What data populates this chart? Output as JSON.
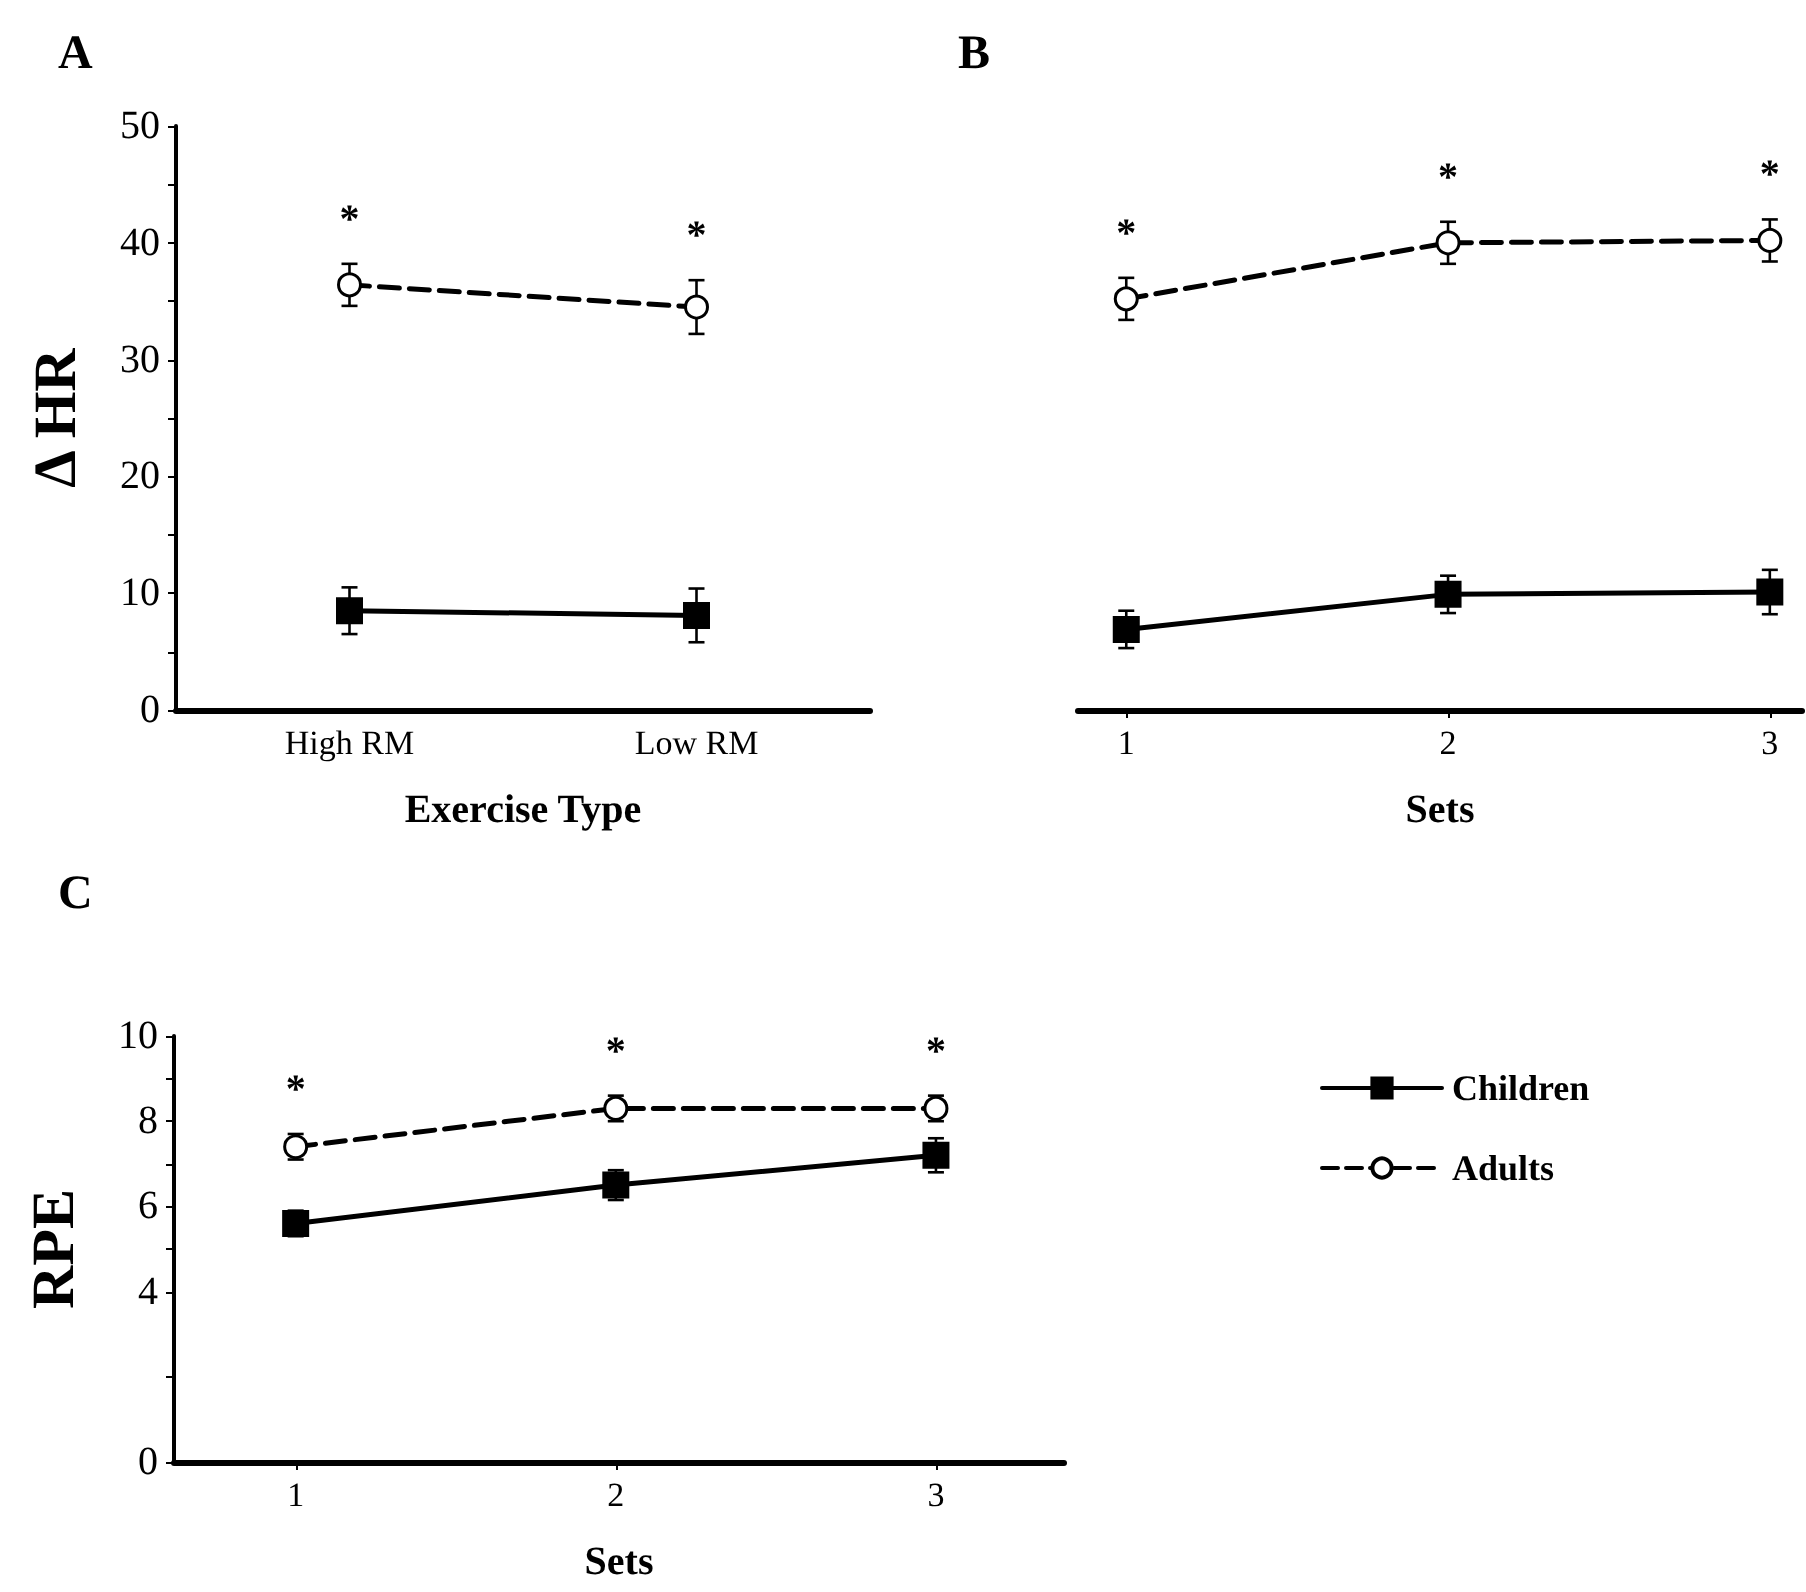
{
  "chart_data": [
    {
      "type": "line",
      "title": "A",
      "xlabel": "Exercise Type",
      "ylabel": "Δ HR",
      "categories": [
        "High RM",
        "Low RM"
      ],
      "ylim": [
        0,
        50
      ],
      "yticks": [
        0,
        {
          "value": 5,
          "label": null
        },
        10,
        {
          "value": 15,
          "label": null
        },
        20,
        {
          "value": 25,
          "label": null
        },
        30,
        {
          "value": 35,
          "label": null
        },
        40,
        {
          "value": 45,
          "label": null
        },
        50
      ],
      "grid": false,
      "legend": false,
      "series": [
        {
          "color": "#000000",
          "marker": "square",
          "line_style": "solid",
          "values": [
            8.5,
            8.1
          ],
          "errors": [
            2.0,
            2.3
          ]
        },
        {
          "color": "#000000",
          "marker": "circle",
          "line_style": "dashed",
          "values": [
            36.4,
            34.5
          ],
          "errors": [
            1.8,
            2.3
          ]
        }
      ],
      "annotations": [
        "*",
        "*"
      ]
    },
    {
      "type": "line",
      "title": "B",
      "xlabel": "Sets",
      "x": [
        1,
        2,
        3
      ],
      "xlim": [
        0.85,
        3.1
      ],
      "xticks": [
        1,
        2,
        3
      ],
      "ylim": [
        0,
        50
      ],
      "yticks": [
        0,
        10,
        20,
        30,
        40,
        50
      ],
      "tick_labels": "x",
      "grid": false,
      "legend": false,
      "series": [
        {
          "color": "#000000",
          "marker": "square",
          "line_style": "solid",
          "values": [
            6.9,
            9.9,
            10.1
          ],
          "errors": [
            1.6,
            1.6,
            1.9
          ]
        },
        {
          "color": "#000000",
          "marker": "circle",
          "line_style": "dashed",
          "values": [
            35.2,
            40.0,
            40.2
          ],
          "errors": [
            1.8,
            1.8,
            1.8
          ]
        }
      ],
      "annotations": [
        "*",
        "*",
        "*"
      ]
    },
    {
      "type": "line",
      "title": "C",
      "xlabel": "Sets",
      "ylabel": "RPE",
      "x": [
        1,
        2,
        3
      ],
      "xlim": [
        0.62,
        3.4
      ],
      "xticks": [
        1,
        2,
        3
      ],
      "ylim": [
        0,
        10
      ],
      "yticks": [
        0,
        {
          "value": 2,
          "label": null
        },
        4,
        {
          "value": 5,
          "label": null
        },
        6,
        {
          "value": 7,
          "label": null
        },
        8,
        {
          "value": 9,
          "label": null
        },
        10
      ],
      "grid": false,
      "legend": "right",
      "series": [
        {
          "name": "Children",
          "color": "#000000",
          "marker": "square",
          "line_style": "solid",
          "values": [
            5.6,
            6.5,
            7.2
          ],
          "errors": [
            0.3,
            0.35,
            0.4
          ]
        },
        {
          "name": "Adults",
          "color": "#000000",
          "marker": "circle",
          "line_style": "dashed",
          "values": [
            7.4,
            8.3,
            8.3
          ],
          "errors": [
            0.3,
            0.3,
            0.3
          ]
        }
      ],
      "annotations": [
        "*",
        "*",
        "*"
      ]
    }
  ]
}
